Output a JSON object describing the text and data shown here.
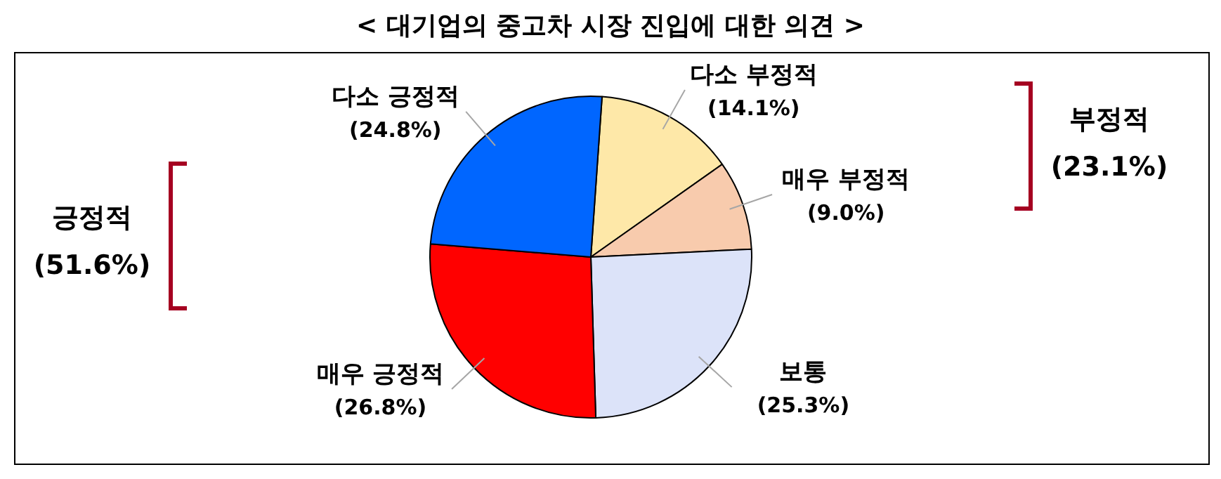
{
  "chart_data": {
    "type": "pie",
    "title": "< 대기업의 중고차 시장 진입에 대한 의견 >",
    "categories": [
      "다소 부정적",
      "매우 부정적",
      "보통",
      "매우 긍정적",
      "다소 긍정적"
    ],
    "values": [
      14.1,
      9.0,
      25.3,
      26.8,
      24.8
    ],
    "value_labels": [
      "(14.1%)",
      "(9.0%)",
      "(25.3%)",
      "(26.8%)",
      "(24.8%)"
    ],
    "colors": [
      "#fee8a8",
      "#f8cbad",
      "#dce3f9",
      "#ff0000",
      "#0066ff"
    ],
    "annotations": [
      "긍정적 (51.6%)",
      "부정적 (23.1%)"
    ],
    "legend": false
  }
}
